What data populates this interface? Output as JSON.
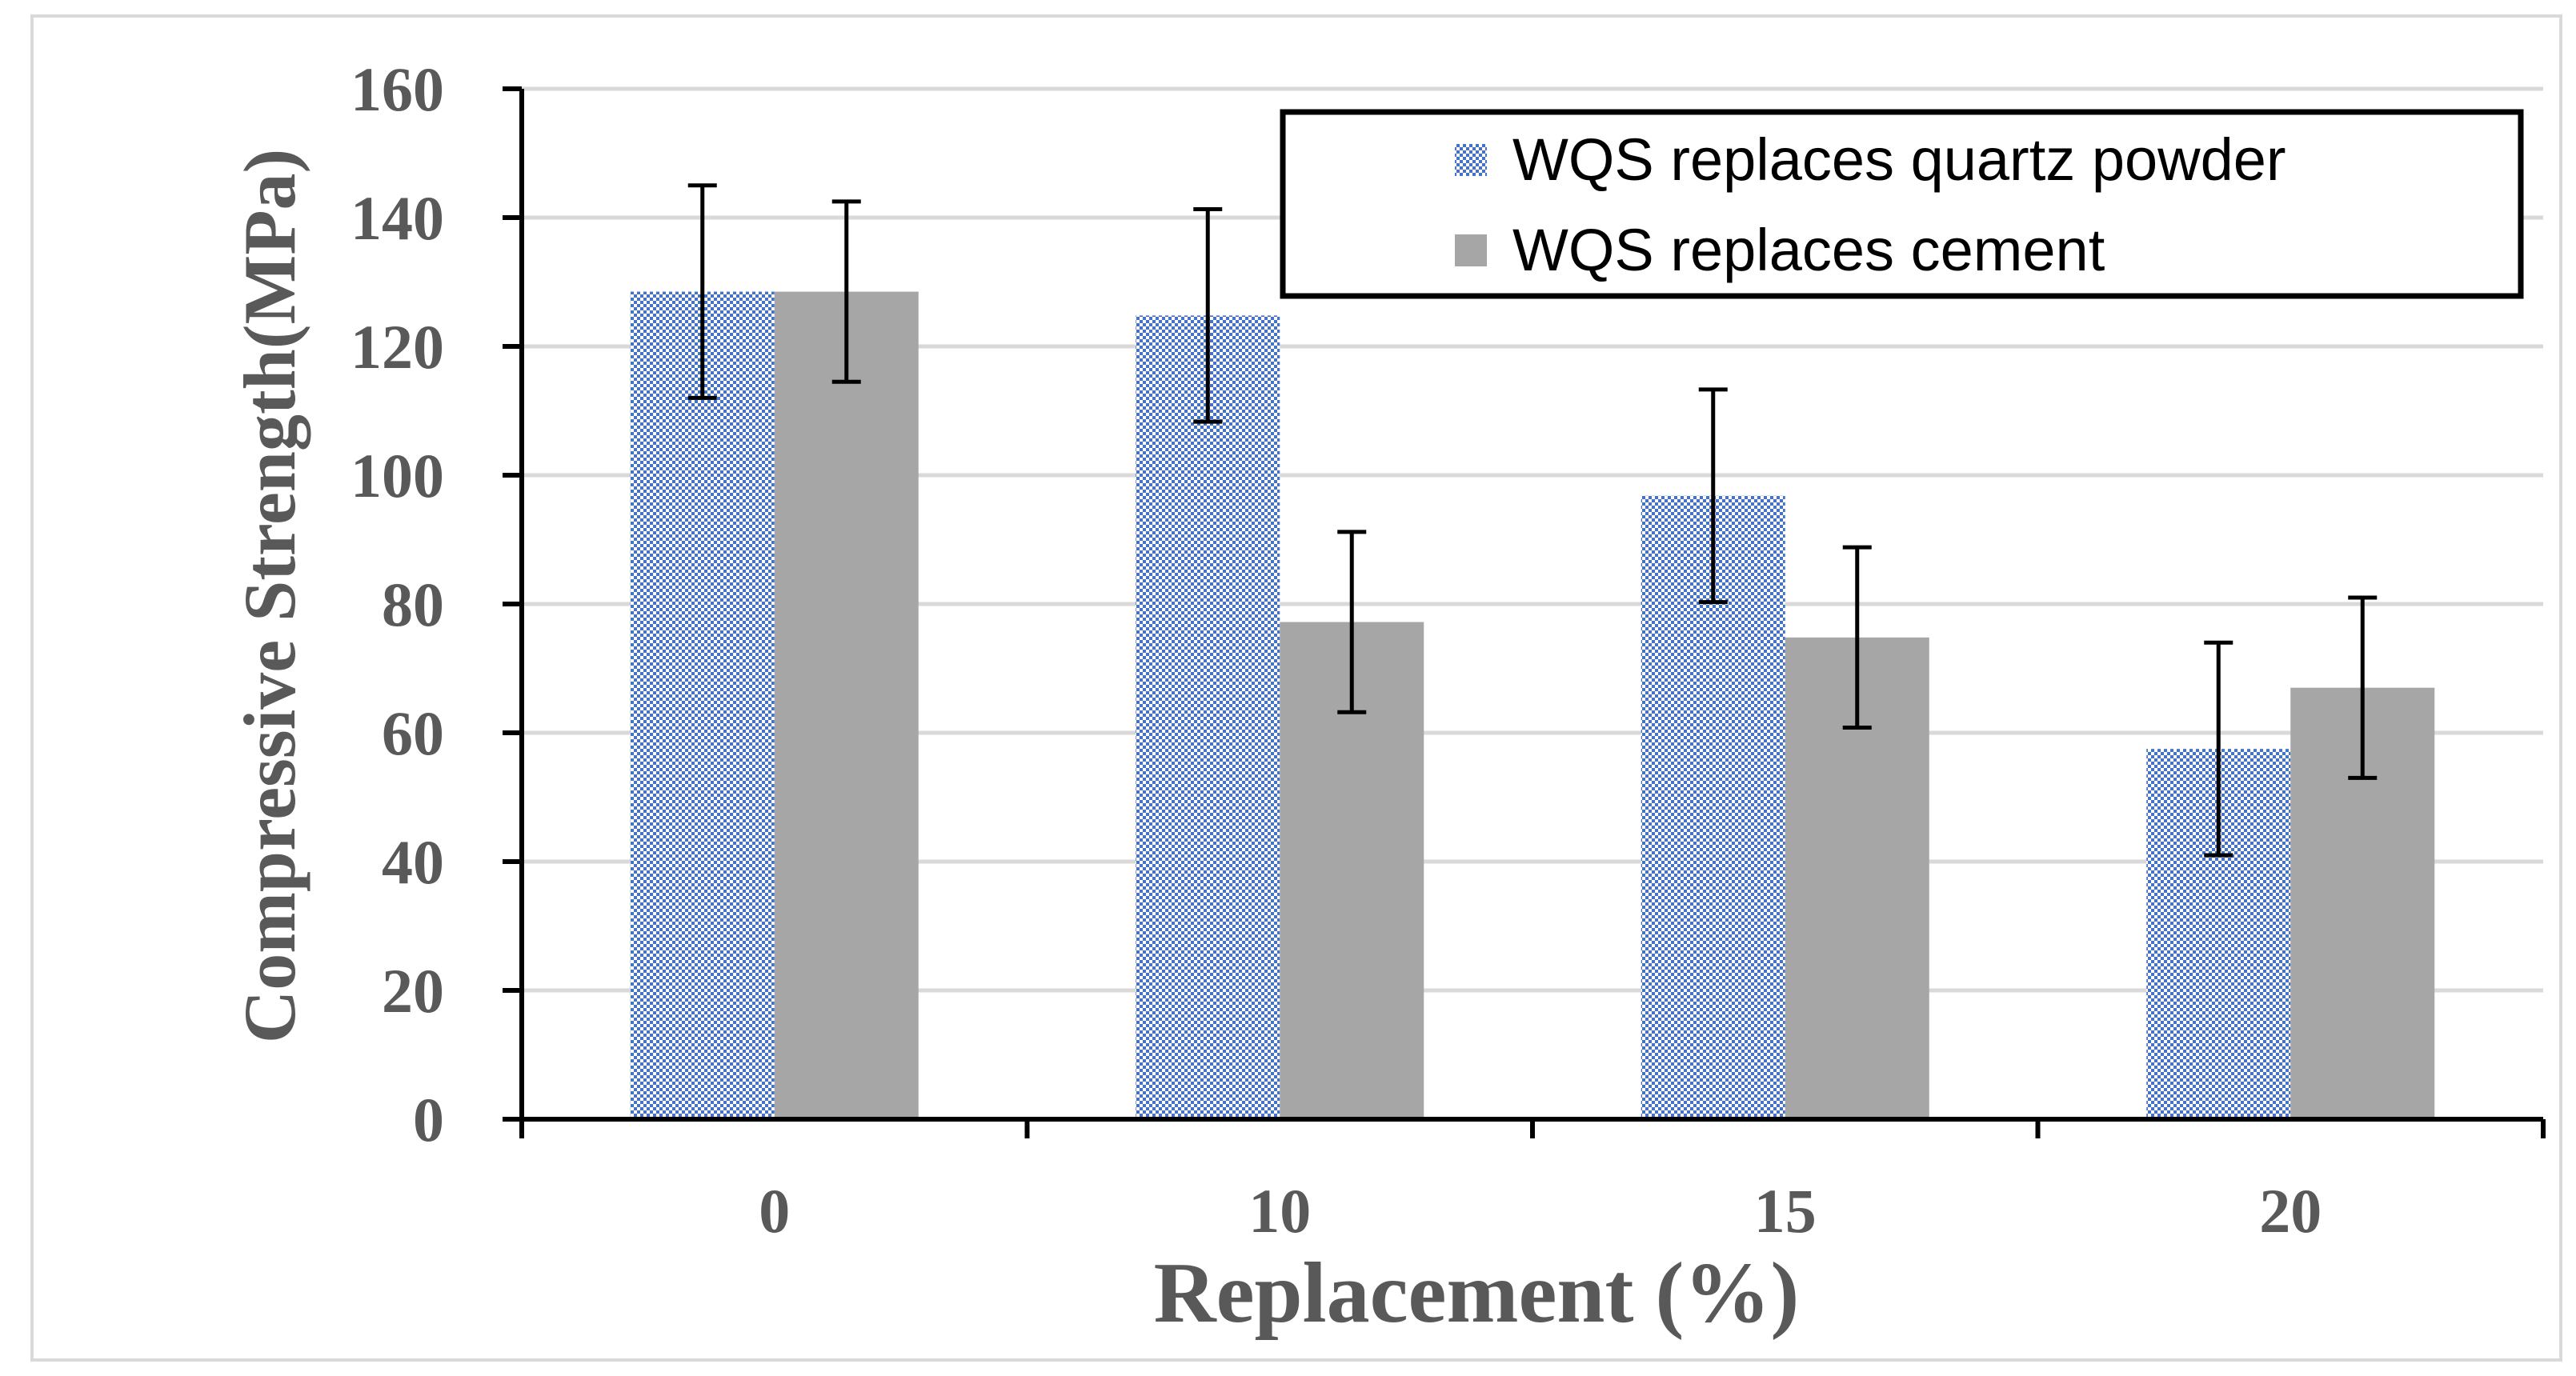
{
  "chart_data": {
    "type": "bar",
    "title": "",
    "xlabel": "Replacement (%)",
    "ylabel": "Compressive Strength(MPa)",
    "categories": [
      "0",
      "10",
      "15",
      "20"
    ],
    "ylim": [
      0,
      160
    ],
    "yticks": [
      "0",
      "20",
      "40",
      "60",
      "80",
      "100",
      "120",
      "140",
      "160"
    ],
    "grid": true,
    "legend_position": "top-right",
    "series": [
      {
        "name": "WQS replaces quartz powder",
        "values": [
          128.5,
          124.8,
          96.8,
          57.5
        ],
        "error": [
          16.5,
          16.5,
          16.5,
          16.5
        ],
        "pattern": "checker",
        "color": "#4472C4"
      },
      {
        "name": "WQS replaces cement",
        "values": [
          128.5,
          77.2,
          74.8,
          67.0
        ],
        "error": [
          14.0,
          14.0,
          14.0,
          14.0
        ],
        "pattern": "solid",
        "color": "#A6A6A6"
      }
    ]
  }
}
